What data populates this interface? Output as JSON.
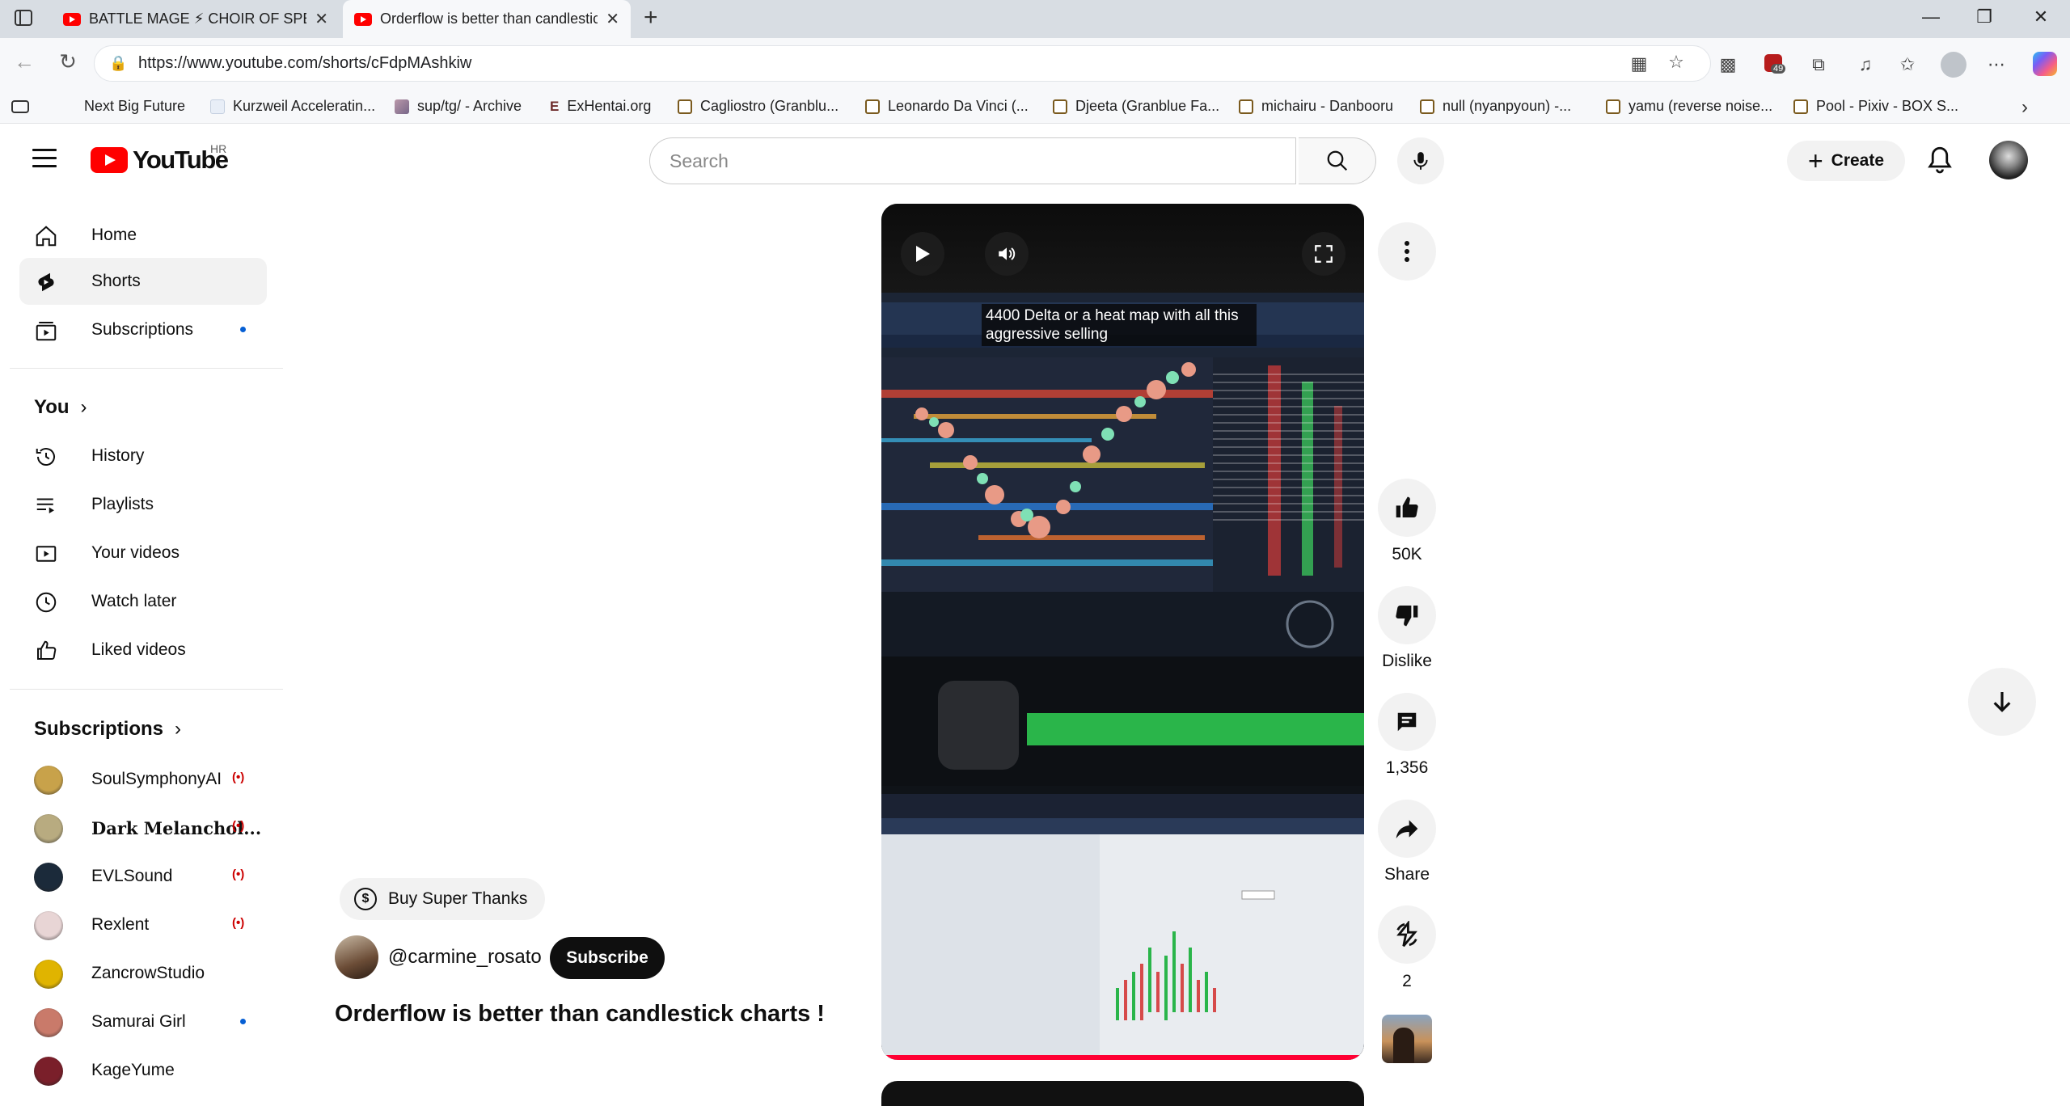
{
  "browser": {
    "tabs": [
      {
        "title": "BATTLE MAGE ⚡ CHOIR OF SPELLS",
        "active": false
      },
      {
        "title": "Orderflow is better than candlestick charts !",
        "active": true
      }
    ],
    "url": "https://www.youtube.com/shorts/cFdpMAshkiw",
    "extension_badge": "49",
    "bookmarks": [
      {
        "label": "Next Big Future",
        "icon": "page-icon"
      },
      {
        "label": "Kurzweil Acceleratin...",
        "icon": "page-icon"
      },
      {
        "label": "sup/tg/ - Archive",
        "icon": "image-icon"
      },
      {
        "label": "ExHentai.org",
        "icon": "eh-icon"
      },
      {
        "label": "Cagliostro (Granblu...",
        "icon": "folder-icon"
      },
      {
        "label": "Leonardo Da Vinci (...",
        "icon": "folder-icon"
      },
      {
        "label": "Djeeta (Granblue Fa...",
        "icon": "folder-icon"
      },
      {
        "label": "michairu - Danbooru",
        "icon": "folder-icon"
      },
      {
        "label": "null (nyanpyoun) -...",
        "icon": "folder-icon"
      },
      {
        "label": "yamu (reverse noise...",
        "icon": "folder-icon"
      },
      {
        "label": "Pool - Pixiv - BOX S...",
        "icon": "folder-icon"
      }
    ]
  },
  "header": {
    "logo_text": "YouTube",
    "country_code": "HR",
    "search_placeholder": "Search",
    "create_label": "Create"
  },
  "sidebar": {
    "main": [
      {
        "label": "Home",
        "icon": "home-icon"
      },
      {
        "label": "Shorts",
        "icon": "shorts-icon",
        "selected": true
      },
      {
        "label": "Subscriptions",
        "icon": "subscriptions-icon",
        "new_dot": true
      }
    ],
    "you_heading": "You",
    "you": [
      {
        "label": "History",
        "icon": "history-icon"
      },
      {
        "label": "Playlists",
        "icon": "playlists-icon"
      },
      {
        "label": "Your videos",
        "icon": "your-videos-icon"
      },
      {
        "label": "Watch later",
        "icon": "clock-icon"
      },
      {
        "label": "Liked videos",
        "icon": "thumbs-up-icon"
      }
    ],
    "subscriptions_heading": "Subscriptions",
    "subscriptions": [
      {
        "label": "SoulSymphonyAI",
        "status": "live",
        "avatar_color": "#c8a24a"
      },
      {
        "label": "Dark Melanchol...",
        "status": "live",
        "avatar_color": "#b8ab80"
      },
      {
        "label": "EVLSound",
        "status": "live",
        "avatar_color": "#1b2a3a"
      },
      {
        "label": "Rexlent",
        "status": "live",
        "avatar_color": "#e8d5d5"
      },
      {
        "label": "ZancrowStudio",
        "status": "none",
        "avatar_color": "#e0b400"
      },
      {
        "label": "Samurai Girl",
        "status": "new",
        "avatar_color": "#c97a6a"
      },
      {
        "label": "KageYume",
        "status": "none",
        "avatar_color": "#7a1f2a"
      }
    ]
  },
  "short": {
    "caption": "4400 Delta or a heat map with all this aggressive selling",
    "title": "Orderflow is better than candlestick charts !",
    "channel": "@carmine_rosato",
    "subscribe_label": "Subscribe",
    "super_thanks_label": "Buy Super Thanks",
    "likes": "50K",
    "dislike_label": "Dislike",
    "comments": "1,356",
    "share_label": "Share",
    "remixes": "2"
  }
}
